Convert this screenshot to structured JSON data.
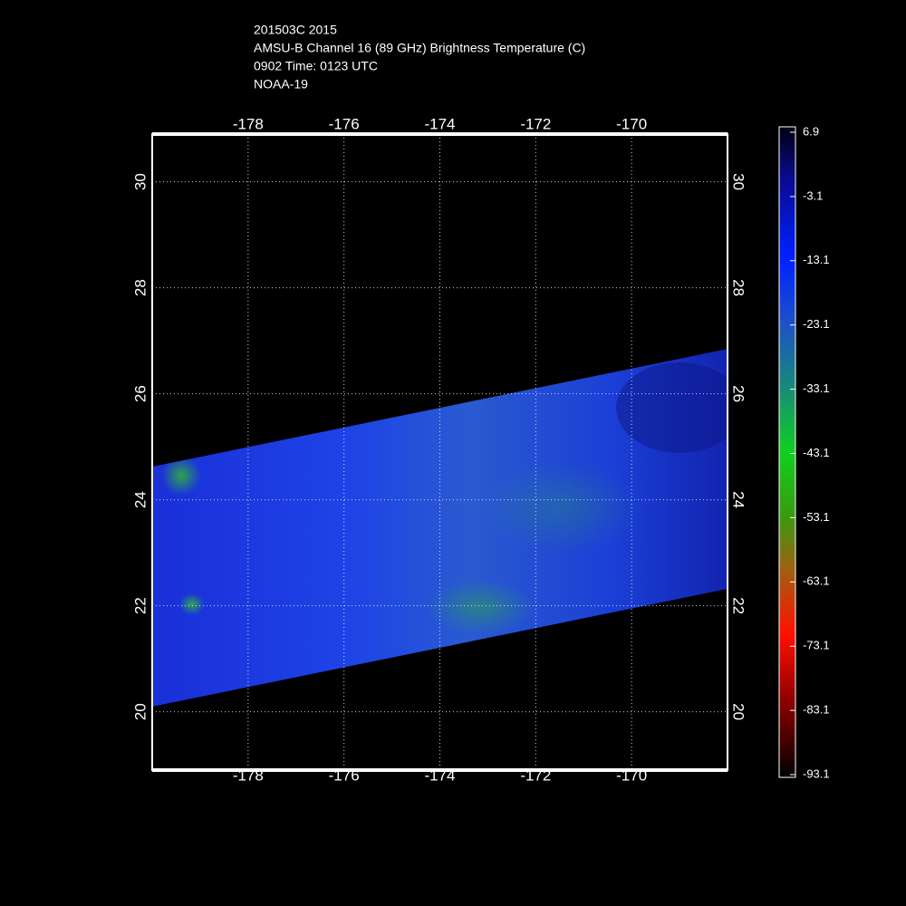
{
  "header": {
    "lines": [
      "201503C 2015",
      "AMSU-B Channel 16 (89 GHz) Brightness Temperature (C)",
      "0902 Time: 0123 UTC",
      "NOAA-19"
    ]
  },
  "map": {
    "lon_range": [
      -180,
      -168
    ],
    "lat_range": [
      18.9,
      30.9
    ],
    "lon_ticks": [
      -178,
      -176,
      -174,
      -172,
      -170
    ],
    "lat_ticks": [
      20,
      22,
      24,
      26,
      28,
      30
    ]
  },
  "colorbar": {
    "range": [
      -93.1,
      6.9
    ],
    "ticks": [
      6.9,
      -3.1,
      -13.1,
      -23.1,
      -33.1,
      -43.1,
      -53.1,
      -63.1,
      -73.1,
      -83.1,
      -93.1
    ]
  }
}
